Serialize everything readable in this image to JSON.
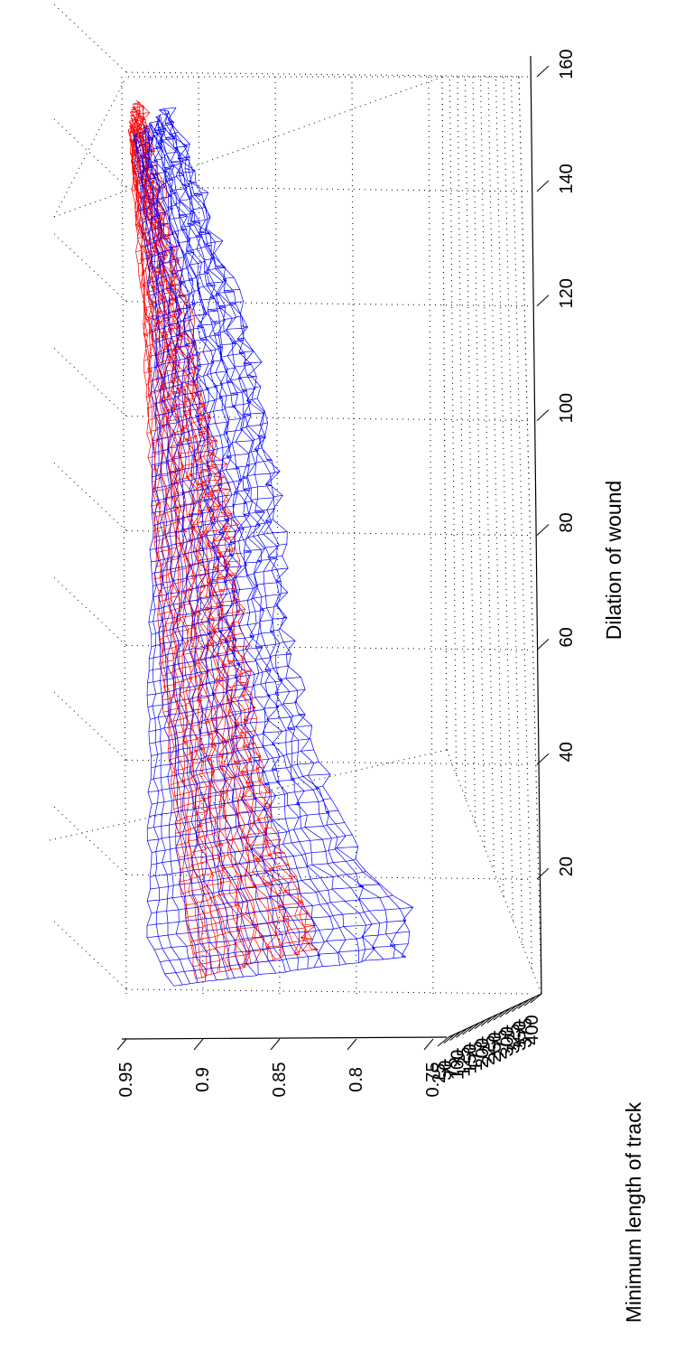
{
  "chart_data": {
    "type": "surface",
    "title": "",
    "orientation": "rotated 90 degrees counter-clockwise",
    "grid": "on (dotted box)",
    "xlabel": "Dilation of wound",
    "ylabel": "Minimum length of track",
    "zlabel": "",
    "x_ticks": [
      "20",
      "40",
      "60",
      "80",
      "100",
      "120",
      "140",
      "160"
    ],
    "y_ticks": [
      "25",
      "50",
      "75",
      "100",
      "125",
      "150",
      "175",
      "200",
      "225",
      "250",
      "275",
      "300",
      "325",
      "350",
      "375",
      "400"
    ],
    "z_ticks": [
      "0.75",
      "0.8",
      "0.85",
      "0.9",
      "0.95"
    ],
    "xlim": [
      0,
      160
    ],
    "ylim": [
      25,
      400
    ],
    "zlim": [
      0.75,
      0.95
    ],
    "series": [
      {
        "color": "#ff0000",
        "profile_near": [
          [
            2,
            0.905
          ],
          [
            10,
            0.91
          ],
          [
            20,
            0.915
          ],
          [
            40,
            0.922
          ],
          [
            60,
            0.928
          ],
          [
            80,
            0.932
          ],
          [
            100,
            0.936
          ],
          [
            120,
            0.94
          ],
          [
            150,
            0.948
          ]
        ],
        "profile_far": [
          [
            2,
            0.835
          ],
          [
            10,
            0.84
          ],
          [
            20,
            0.86
          ],
          [
            40,
            0.875
          ],
          [
            60,
            0.885
          ],
          [
            80,
            0.892
          ],
          [
            100,
            0.91
          ],
          [
            120,
            0.925
          ],
          [
            150,
            0.95
          ]
        ]
      },
      {
        "color": "#0000ff",
        "profile_near": [
          [
            2,
            0.92
          ],
          [
            10,
            0.935
          ],
          [
            20,
            0.935
          ],
          [
            40,
            0.935
          ],
          [
            60,
            0.935
          ],
          [
            80,
            0.933
          ],
          [
            100,
            0.932
          ],
          [
            120,
            0.933
          ],
          [
            150,
            0.945
          ]
        ],
        "profile_far": [
          [
            2,
            0.775
          ],
          [
            10,
            0.775
          ],
          [
            20,
            0.81
          ],
          [
            40,
            0.84
          ],
          [
            60,
            0.855
          ],
          [
            80,
            0.86
          ],
          [
            100,
            0.87
          ],
          [
            120,
            0.89
          ],
          [
            150,
            0.93
          ]
        ]
      }
    ]
  }
}
